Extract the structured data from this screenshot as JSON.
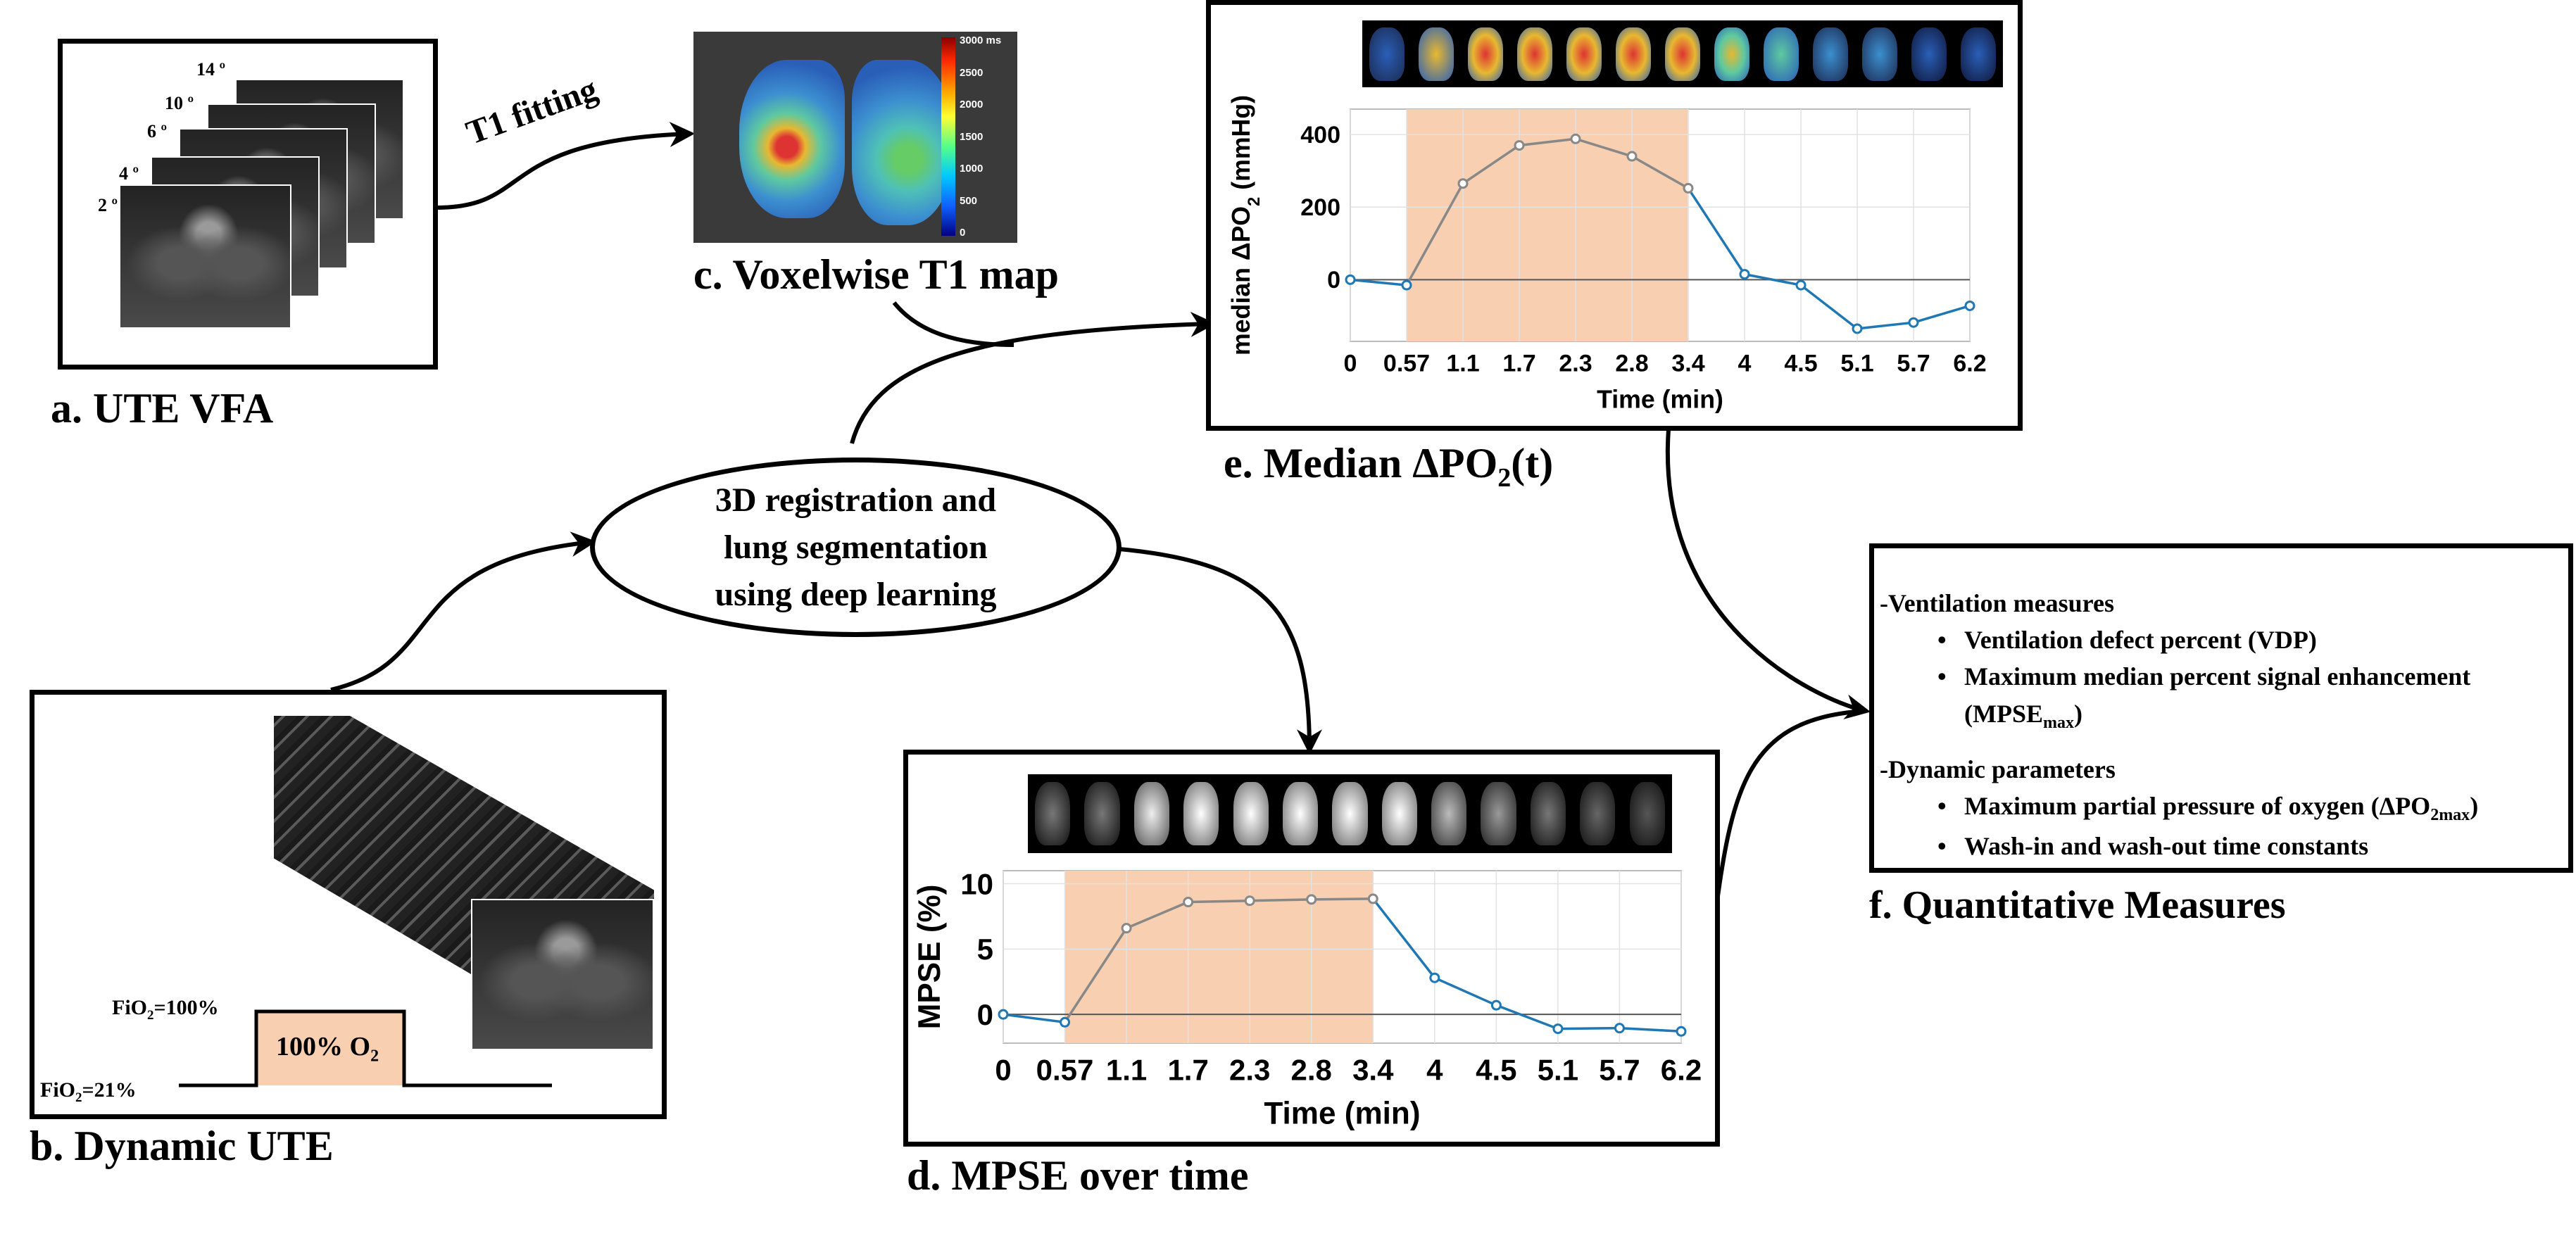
{
  "captions": {
    "a": "a. UTE VFA",
    "b": "b. Dynamic UTE",
    "c": "c. Voxelwise T1 map",
    "d": "d. MPSE over time",
    "e_prefix": "e. Median ΔPO",
    "e_sub": "2",
    "e_suffix": "(t)",
    "f": "f. Quantitative Measures"
  },
  "vfa_angles": [
    "14 º",
    "10 º",
    "6 º",
    "4 º",
    "2 º"
  ],
  "t1_fitting_label": "T1 fitting",
  "t1_colorbar_ticks": [
    "3000 ms",
    "2500",
    "2000",
    "1500",
    "1000",
    "500",
    "0"
  ],
  "registration_node": [
    "3D registration and",
    "lung segmentation",
    "using deep learning"
  ],
  "fio2": {
    "high_prefix": "FiO",
    "high_sub": "2",
    "high_suffix": "=100%",
    "low_prefix": "FiO",
    "low_sub": "2",
    "low_suffix": "=21%",
    "box_prefix": "100% O",
    "box_sub": "2"
  },
  "measures": {
    "ventilation_head": "-Ventilation measures",
    "ventilation_items": [
      "Ventilation defect percent (VDP)",
      "Maximum median percent signal enhancement"
    ],
    "mpse_max_prefix": "(MPSE",
    "mpse_max_sub": "max",
    "mpse_max_suffix": ")",
    "dynamic_head": "-Dynamic parameters",
    "dynamic_item1_prefix": "Maximum partial pressure of oxygen (ΔPO",
    "dynamic_item1_sub": "2max",
    "dynamic_item1_suffix": ")",
    "dynamic_item2": "Wash-in and wash-out time constants"
  },
  "chart_data": [
    {
      "id": "median_dpo2",
      "type": "line",
      "x": [
        "0",
        "0.57",
        "1.1",
        "1.7",
        "2.3",
        "2.8",
        "3.4",
        "4",
        "4.5",
        "5.1",
        "5.7",
        "6.2"
      ],
      "values": [
        0,
        -15,
        265,
        370,
        388,
        340,
        252,
        15,
        -15,
        -135,
        -118,
        -72
      ],
      "xlabel": "Time (min)",
      "ylabel_prefix": "median ΔPO",
      "ylabel_sub": "2",
      "ylabel_suffix": " (mmHg)",
      "yticks": [
        0,
        200,
        400
      ],
      "ylim": [
        -170,
        470
      ],
      "shaded_x_range": [
        "0.57",
        "3.4"
      ],
      "shade_color": "#f8cfb0",
      "line_color": "#1f77b4",
      "inside_line_color": "#888888",
      "grid": true
    },
    {
      "id": "mpse",
      "type": "line",
      "x": [
        "0",
        "0.57",
        "1.1",
        "1.7",
        "2.3",
        "2.8",
        "3.4",
        "4",
        "4.5",
        "5.1",
        "5.7",
        "6.2"
      ],
      "values": [
        0,
        -0.6,
        6.6,
        8.6,
        8.7,
        8.8,
        8.85,
        2.8,
        0.7,
        -1.1,
        -1.05,
        -1.3
      ],
      "xlabel": "Time (min)",
      "ylabel": "MPSE (%)",
      "yticks": [
        0,
        5,
        10
      ],
      "ylim": [
        -2.2,
        11
      ],
      "shaded_x_range": [
        "0.57",
        "3.4"
      ],
      "shade_color": "#f8cfb0",
      "line_color": "#1f77b4",
      "inside_line_color": "#888888",
      "grid": true
    }
  ]
}
